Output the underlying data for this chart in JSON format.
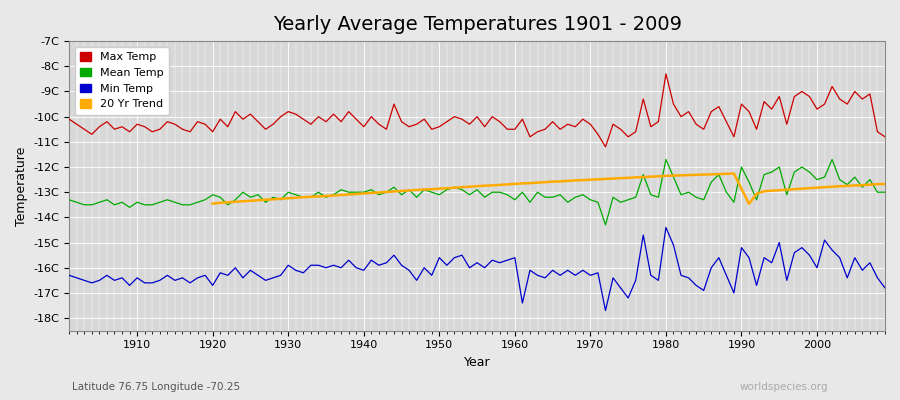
{
  "title": "Yearly Average Temperatures 1901 - 2009",
  "xlabel": "Year",
  "ylabel": "Temperature",
  "lat_lon_label": "Latitude 76.75 Longitude -70.25",
  "watermark": "worldspecies.org",
  "years": [
    1901,
    1902,
    1903,
    1904,
    1905,
    1906,
    1907,
    1908,
    1909,
    1910,
    1911,
    1912,
    1913,
    1914,
    1915,
    1916,
    1917,
    1918,
    1919,
    1920,
    1921,
    1922,
    1923,
    1924,
    1925,
    1926,
    1927,
    1928,
    1929,
    1930,
    1931,
    1932,
    1933,
    1934,
    1935,
    1936,
    1937,
    1938,
    1939,
    1940,
    1941,
    1942,
    1943,
    1944,
    1945,
    1946,
    1947,
    1948,
    1949,
    1950,
    1951,
    1952,
    1953,
    1954,
    1955,
    1956,
    1957,
    1958,
    1959,
    1960,
    1961,
    1962,
    1963,
    1964,
    1965,
    1966,
    1967,
    1968,
    1969,
    1970,
    1971,
    1972,
    1973,
    1974,
    1975,
    1976,
    1977,
    1978,
    1979,
    1980,
    1981,
    1982,
    1983,
    1984,
    1985,
    1986,
    1987,
    1988,
    1989,
    1990,
    1991,
    1992,
    1993,
    1994,
    1995,
    1996,
    1997,
    1998,
    1999,
    2000,
    2001,
    2002,
    2003,
    2004,
    2005,
    2006,
    2007,
    2008,
    2009
  ],
  "max_temp": [
    -10.1,
    -10.3,
    -10.5,
    -10.7,
    -10.4,
    -10.2,
    -10.5,
    -10.4,
    -10.6,
    -10.3,
    -10.4,
    -10.6,
    -10.5,
    -10.2,
    -10.3,
    -10.5,
    -10.6,
    -10.2,
    -10.3,
    -10.6,
    -10.1,
    -10.4,
    -9.8,
    -10.1,
    -9.9,
    -10.2,
    -10.5,
    -10.3,
    -10.0,
    -9.8,
    -9.9,
    -10.1,
    -10.3,
    -10.0,
    -10.2,
    -9.9,
    -10.2,
    -9.8,
    -10.1,
    -10.4,
    -10.0,
    -10.3,
    -10.5,
    -9.5,
    -10.2,
    -10.4,
    -10.3,
    -10.1,
    -10.5,
    -10.4,
    -10.2,
    -10.0,
    -10.1,
    -10.3,
    -10.0,
    -10.4,
    -10.0,
    -10.2,
    -10.5,
    -10.5,
    -10.1,
    -10.8,
    -10.6,
    -10.5,
    -10.2,
    -10.5,
    -10.3,
    -10.4,
    -10.1,
    -10.3,
    -10.7,
    -11.2,
    -10.3,
    -10.5,
    -10.8,
    -10.6,
    -9.3,
    -10.4,
    -10.2,
    -8.3,
    -9.5,
    -10.0,
    -9.8,
    -10.3,
    -10.5,
    -9.8,
    -9.6,
    -10.2,
    -10.8,
    -9.5,
    -9.8,
    -10.5,
    -9.4,
    -9.7,
    -9.2,
    -10.3,
    -9.2,
    -9.0,
    -9.2,
    -9.7,
    -9.5,
    -8.8,
    -9.3,
    -9.5,
    -9.0,
    -9.3,
    -9.1,
    -10.6,
    -10.8
  ],
  "mean_temp": [
    -13.3,
    -13.4,
    -13.5,
    -13.5,
    -13.4,
    -13.3,
    -13.5,
    -13.4,
    -13.6,
    -13.4,
    -13.5,
    -13.5,
    -13.4,
    -13.3,
    -13.4,
    -13.5,
    -13.5,
    -13.4,
    -13.3,
    -13.1,
    -13.2,
    -13.5,
    -13.3,
    -13.0,
    -13.2,
    -13.1,
    -13.4,
    -13.2,
    -13.3,
    -13.0,
    -13.1,
    -13.2,
    -13.2,
    -13.0,
    -13.2,
    -13.1,
    -12.9,
    -13.0,
    -13.0,
    -13.0,
    -12.9,
    -13.1,
    -13.0,
    -12.8,
    -13.1,
    -12.9,
    -13.2,
    -12.9,
    -13.0,
    -13.1,
    -12.9,
    -12.8,
    -12.9,
    -13.1,
    -12.9,
    -13.2,
    -13.0,
    -13.0,
    -13.1,
    -13.3,
    -13.0,
    -13.4,
    -13.0,
    -13.2,
    -13.2,
    -13.1,
    -13.4,
    -13.2,
    -13.1,
    -13.3,
    -13.4,
    -14.3,
    -13.2,
    -13.4,
    -13.3,
    -13.2,
    -12.3,
    -13.1,
    -13.2,
    -11.7,
    -12.4,
    -13.1,
    -13.0,
    -13.2,
    -13.3,
    -12.6,
    -12.3,
    -13.0,
    -13.4,
    -12.0,
    -12.6,
    -13.3,
    -12.3,
    -12.2,
    -12.0,
    -13.1,
    -12.2,
    -12.0,
    -12.2,
    -12.5,
    -12.4,
    -11.7,
    -12.5,
    -12.7,
    -12.4,
    -12.8,
    -12.5,
    -13.0,
    -13.0
  ],
  "min_temp": [
    -16.3,
    -16.4,
    -16.5,
    -16.6,
    -16.5,
    -16.3,
    -16.5,
    -16.4,
    -16.7,
    -16.4,
    -16.6,
    -16.6,
    -16.5,
    -16.3,
    -16.5,
    -16.4,
    -16.6,
    -16.4,
    -16.3,
    -16.7,
    -16.2,
    -16.3,
    -16.0,
    -16.4,
    -16.1,
    -16.3,
    -16.5,
    -16.4,
    -16.3,
    -15.9,
    -16.1,
    -16.2,
    -15.9,
    -15.9,
    -16.0,
    -15.9,
    -16.0,
    -15.7,
    -16.0,
    -16.1,
    -15.7,
    -15.9,
    -15.8,
    -15.5,
    -15.9,
    -16.1,
    -16.5,
    -16.0,
    -16.3,
    -15.6,
    -15.9,
    -15.6,
    -15.5,
    -16.0,
    -15.8,
    -16.0,
    -15.7,
    -15.8,
    -15.7,
    -15.6,
    -17.4,
    -16.1,
    -16.3,
    -16.4,
    -16.1,
    -16.3,
    -16.1,
    -16.3,
    -16.1,
    -16.3,
    -16.2,
    -17.7,
    -16.4,
    -16.8,
    -17.2,
    -16.5,
    -14.7,
    -16.3,
    -16.5,
    -14.4,
    -15.1,
    -16.3,
    -16.4,
    -16.7,
    -16.9,
    -16.0,
    -15.6,
    -16.3,
    -17.0,
    -15.2,
    -15.6,
    -16.7,
    -15.6,
    -15.8,
    -15.0,
    -16.5,
    -15.4,
    -15.2,
    -15.5,
    -16.0,
    -14.9,
    -15.3,
    -15.6,
    -16.4,
    -15.6,
    -16.1,
    -15.8,
    -16.4,
    -16.8
  ],
  "trend_start_year": 1920,
  "trend": [
    -13.45,
    -13.42,
    -13.4,
    -13.38,
    -13.36,
    -13.34,
    -13.32,
    -13.3,
    -13.28,
    -13.26,
    -13.24,
    -13.22,
    -13.2,
    -13.18,
    -13.17,
    -13.15,
    -13.13,
    -13.11,
    -13.09,
    -13.07,
    -13.05,
    -13.03,
    -13.01,
    -12.99,
    -12.97,
    -12.95,
    -12.93,
    -12.91,
    -12.89,
    -12.88,
    -12.86,
    -12.84,
    -12.82,
    -12.8,
    -12.78,
    -12.76,
    -12.74,
    -12.73,
    -12.71,
    -12.69,
    -12.67,
    -12.65,
    -12.64,
    -12.62,
    -12.6,
    -12.58,
    -12.57,
    -12.55,
    -12.53,
    -12.52,
    -12.5,
    -12.49,
    -12.47,
    -12.46,
    -12.44,
    -12.43,
    -12.41,
    -12.4,
    -12.38,
    -12.37,
    -12.35,
    -12.34,
    -12.33,
    -12.32,
    -12.31,
    -12.3,
    -12.29,
    -12.28,
    -12.27,
    -12.26,
    -12.86,
    -13.46,
    -13.06,
    -12.96,
    -12.94,
    -12.92,
    -12.9,
    -12.88,
    -12.86,
    -12.84,
    -12.82,
    -12.8,
    -12.78,
    -12.76,
    -12.75,
    -12.73,
    -12.72,
    -12.7,
    -12.68,
    -12.67
  ],
  "max_color": "#cc0000",
  "mean_color": "#00aa00",
  "min_color": "#0000cc",
  "trend_color": "#ffaa00",
  "bg_color": "#e8e8e8",
  "plot_bg_color": "#d8d8d8",
  "grid_color": "#ffffff",
  "ylim": [
    -18.5,
    -7.0
  ],
  "yticks": [
    -18,
    -17,
    -16,
    -15,
    -14,
    -13,
    -12,
    -11,
    -10,
    -9,
    -8,
    -7
  ],
  "ytick_labels": [
    "-18C",
    "-17C",
    "-16C",
    "-15C",
    "-14C",
    "-13C",
    "-12C",
    "-11C",
    "-10C",
    "-9C",
    "-8C",
    "-7C"
  ],
  "xlim": [
    1901,
    2009
  ],
  "legend_labels": [
    "Max Temp",
    "Mean Temp",
    "Min Temp",
    "20 Yr Trend"
  ],
  "legend_colors": [
    "#cc0000",
    "#00aa00",
    "#0000cc",
    "#ffaa00"
  ]
}
